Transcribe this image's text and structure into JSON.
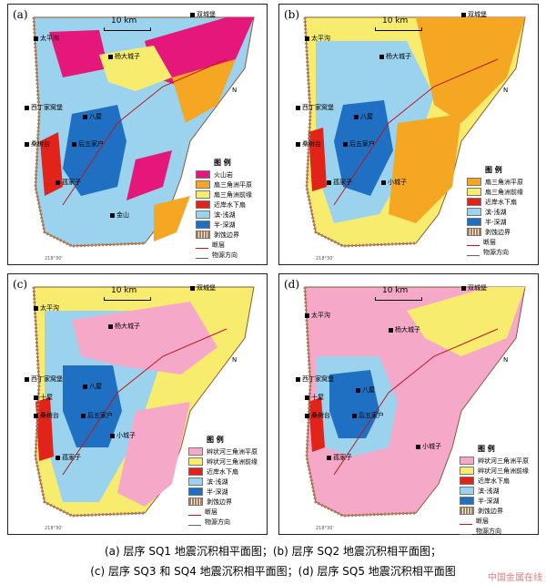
{
  "scale_text": "10 km",
  "north": "N",
  "coord_left": "218°30'",
  "panels": [
    {
      "label": "(a)",
      "legend_title": "图 例",
      "legend": [
        "火山岩",
        "扇三角洲平原",
        "扇三角洲前缘",
        "近岸水下扇",
        "滨-浅湖",
        "半-深湖",
        "剥蚀边界",
        "断层",
        "物源方向"
      ]
    },
    {
      "label": "(b)",
      "legend_title": "图 例",
      "legend": [
        "扇三角洲平原",
        "扇三角洲前缘",
        "近岸水下扇",
        "滨-浅湖",
        "半-深湖",
        "剥蚀边界",
        "断层",
        "物源方向"
      ]
    },
    {
      "label": "(c)",
      "legend_title": "图 例",
      "legend": [
        "辫状河三角洲平原",
        "辫状河三角洲前缘",
        "近岸水下扇",
        "滨-浅湖",
        "半-深湖",
        "剥蚀边界",
        "断层",
        "物源方向"
      ]
    },
    {
      "label": "(d)",
      "legend_title": "图 例",
      "legend": [
        "辫状河三角洲平原",
        "辫状河三角洲前缘",
        "近岸水下扇",
        "滨-浅湖",
        "半-深湖",
        "剥蚀边界",
        "断层",
        "物源方向"
      ]
    }
  ],
  "places": {
    "shuangcheng": "双城堡",
    "taipinggou": "太平沟",
    "yangdacheng": "杨大城子",
    "xidingjia": "西丁家窝堡",
    "bajie": "八屋",
    "quanyanfang": "泉眼房",
    "sangshutai": "桑树台",
    "houwujia": "后五家户",
    "xiaocheng": "小城子",
    "gujiazi": "孤家子",
    "jinshan": "金山",
    "shili": "十屋",
    "xiaochengzi2": "小城子"
  },
  "captions": {
    "line1": "(a) 层序 SQ1 地震沉积相平面图；(b) 层序 SQ2 地震沉积相平面图；",
    "line2": "(c) 层序 SQ3 和 SQ4 地震沉积相平面图；(d) 层序 SQ5 地震沉积相平面图"
  },
  "watermark": "中国金属在线",
  "colors": {
    "volcanic": "#e6177a",
    "fan_plain": "#f5a623",
    "fan_front": "#f7ec6e",
    "nearshore": "#e2231a",
    "shallow": "#9bd3ef",
    "deep": "#1f6fc2",
    "braid_plain": "#f6a8c8",
    "braid_front": "#f7ec6e",
    "erosion": "#b07a55",
    "fault": "#c0161c",
    "land": "#ffffff"
  }
}
